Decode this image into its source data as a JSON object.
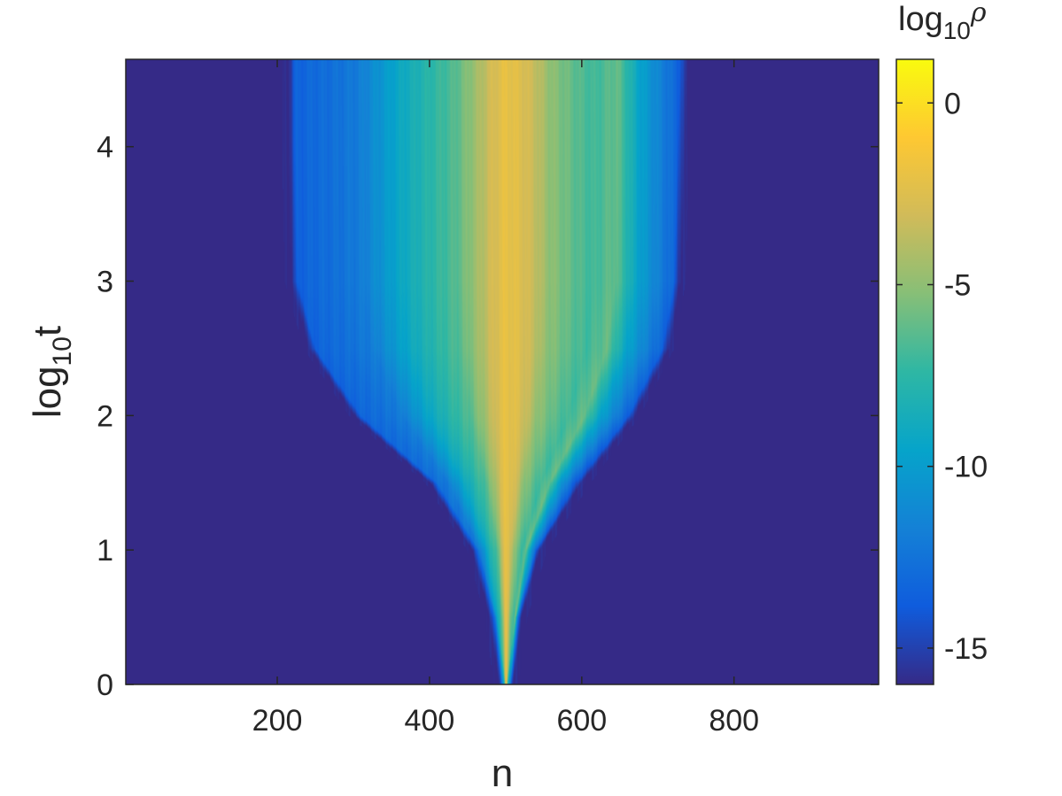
{
  "chart_data": {
    "type": "heatmap",
    "title": "",
    "xlabel": "n",
    "ylabel": {
      "base": "log",
      "sub": "10",
      "var": "t"
    },
    "colorbar_label": {
      "base": "log",
      "sub": "10",
      "var": "ρ"
    },
    "xlim": [
      1,
      990
    ],
    "ylim": [
      0,
      4.65
    ],
    "clim": [
      -16,
      1.2
    ],
    "x_ticks": [
      {
        "value": 200,
        "label": "200"
      },
      {
        "value": 400,
        "label": "400"
      },
      {
        "value": 600,
        "label": "600"
      },
      {
        "value": 800,
        "label": "800"
      }
    ],
    "y_ticks": [
      {
        "value": 0,
        "label": "0"
      },
      {
        "value": 1,
        "label": "1"
      },
      {
        "value": 2,
        "label": "2"
      },
      {
        "value": 3,
        "label": "3"
      },
      {
        "value": 4,
        "label": "4"
      }
    ],
    "colorbar_ticks": [
      {
        "value": 0,
        "label": "0"
      },
      {
        "value": -5,
        "label": "-5"
      },
      {
        "value": -10,
        "label": "-10"
      },
      {
        "value": -15,
        "label": "-15"
      }
    ],
    "colormap": "parula",
    "colormap_stops": [
      "#352a87",
      "#0f5cdd",
      "#1481d6",
      "#06a4ca",
      "#2eb7a4",
      "#87bf77",
      "#d1bb59",
      "#fec832",
      "#f9fb0e"
    ],
    "background_value": -16,
    "grid": false,
    "front": {
      "description_points_log10t": [
        0,
        0.5,
        1,
        1.5,
        2,
        2.5,
        3,
        4,
        4.65
      ],
      "left_n": [
        490,
        478,
        455,
        400,
        300,
        240,
        215,
        212,
        212
      ],
      "right_n": [
        510,
        522,
        548,
        605,
        670,
        715,
        730,
        735,
        738
      ]
    },
    "column_profile": {
      "n": [
        160,
        175,
        200,
        215,
        240,
        260,
        300,
        330,
        360,
        400,
        430,
        460,
        480,
        500,
        520,
        540,
        560,
        600,
        620,
        650,
        680,
        700,
        720,
        740,
        760,
        790,
        810
      ],
      "log10rho": [
        -15.8,
        -14.5,
        -15.8,
        -13.5,
        -13.0,
        -12.8,
        -12.0,
        -10.5,
        -9.0,
        -7.5,
        -6.5,
        -4.5,
        -3.0,
        -2.0,
        -2.5,
        -3.5,
        -5.0,
        -6.5,
        -7.0,
        -6.0,
        -9.5,
        -11.0,
        -12.5,
        -14.0,
        -15.8,
        -15.0,
        -15.8
      ]
    }
  }
}
